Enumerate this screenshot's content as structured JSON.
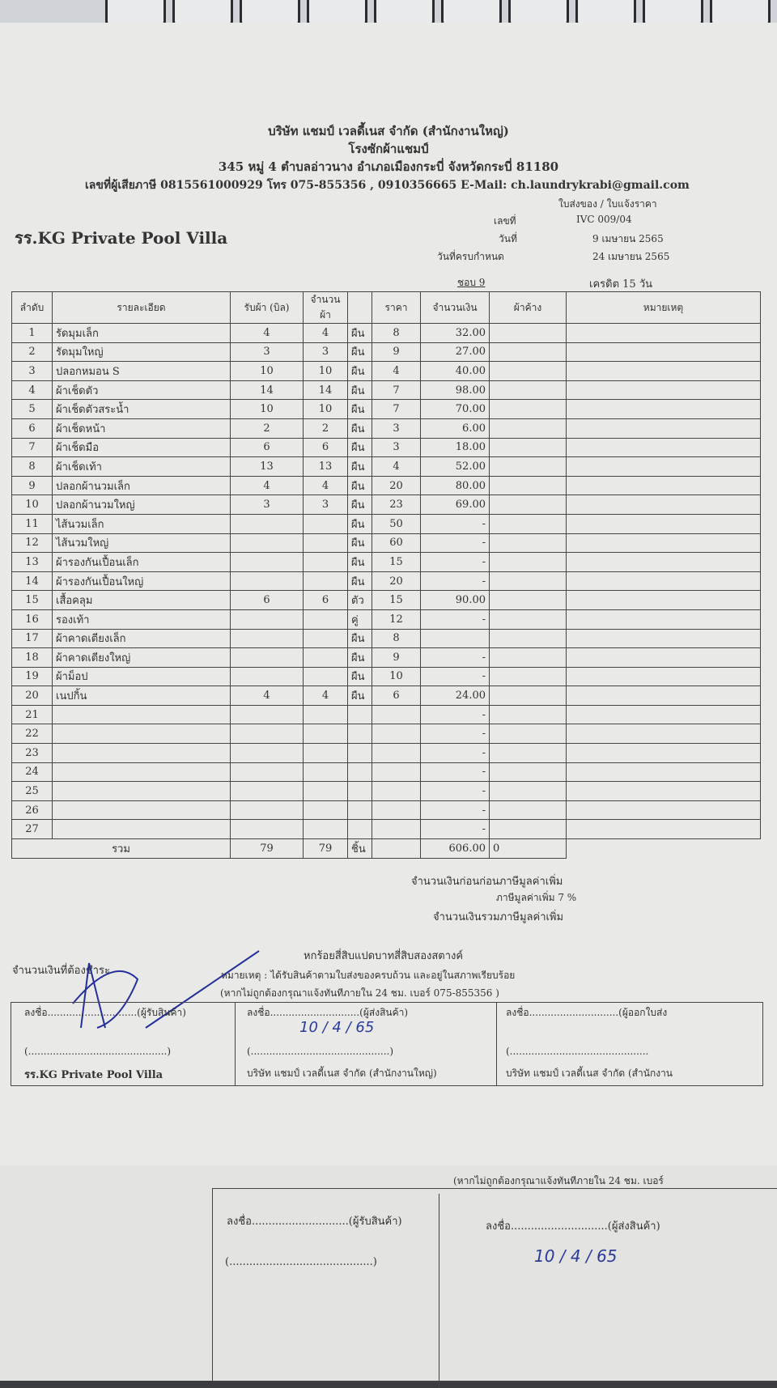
{
  "company": {
    "name": "บริษัท แชมป์ เวลดี้เนส จำกัด (สำนักงานใหญ่)",
    "plant": "โรงซักผ้าแชมป์",
    "address": "345 หมู่ 4 ตำบลอ่าวนาง อำเภอเมืองกระบี่ จังหวัดกระบี่ 81180",
    "contact": "เลขที่ผู้เสียภาษี 0815561000929 โทร 075-855356 , 0910356665 E-Mail: ch.laundrykrabi@gmail.com"
  },
  "doc_type": "ใบส่งของ / ใบแจ้งราคา",
  "customer": "รร.KG Private Pool Villa",
  "meta": {
    "no_label": "เลขที่",
    "no": "IVC 009/04",
    "date_label": "วันที่",
    "date": "9 เมษายน 2565",
    "due_label": "วันที่ครบกำหนด",
    "due": "24 เมษายน 2565",
    "credit": "เครดิต 15 วัน",
    "batch": "ชอบ 9"
  },
  "columns": [
    "ลำดับ",
    "รายละเอียด",
    "รับผ้า (บิล)",
    "จำนวนผ้า",
    "",
    "ราคา",
    "จำนวนเงิน",
    "ผ้าค้าง",
    "หมายเหตุ"
  ],
  "rows": [
    [
      "1",
      "รัดมุมเล็ก",
      "4",
      "4",
      "ผืน",
      "8",
      "32.00"
    ],
    [
      "2",
      "รัดมุมใหญ่",
      "3",
      "3",
      "ผืน",
      "9",
      "27.00"
    ],
    [
      "3",
      "ปลอกหมอน S",
      "10",
      "10",
      "ผืน",
      "4",
      "40.00"
    ],
    [
      "4",
      "ผ้าเช็ดตัว",
      "14",
      "14",
      "ผืน",
      "7",
      "98.00"
    ],
    [
      "5",
      "ผ้าเช็ดตัวสระน้ำ",
      "10",
      "10",
      "ผืน",
      "7",
      "70.00"
    ],
    [
      "6",
      "ผ้าเช็ดหน้า",
      "2",
      "2",
      "ผืน",
      "3",
      "6.00"
    ],
    [
      "7",
      "ผ้าเช็ดมือ",
      "6",
      "6",
      "ผืน",
      "3",
      "18.00"
    ],
    [
      "8",
      "ผ้าเช็ดเท้า",
      "13",
      "13",
      "ผืน",
      "4",
      "52.00"
    ],
    [
      "9",
      "ปลอกผ้านวมเล็ก",
      "4",
      "4",
      "ผืน",
      "20",
      "80.00"
    ],
    [
      "10",
      "ปลอกผ้านวมใหญ่",
      "3",
      "3",
      "ผืน",
      "23",
      "69.00"
    ],
    [
      "11",
      "ไส้นวมเล็ก",
      "",
      "",
      "ผืน",
      "50",
      "-"
    ],
    [
      "12",
      "ไส้นวมใหญ่",
      "",
      "",
      "ผืน",
      "60",
      "-"
    ],
    [
      "13",
      "ผ้ารองกันเปื้อนเล็ก",
      "",
      "",
      "ผืน",
      "15",
      "-"
    ],
    [
      "14",
      "ผ้ารองกันเปื้อนใหญ่",
      "",
      "",
      "ผืน",
      "20",
      "-"
    ],
    [
      "15",
      "เสื้อคลุม",
      "6",
      "6",
      "ตัว",
      "15",
      "90.00"
    ],
    [
      "16",
      "รองเท้า",
      "",
      "",
      "คู่",
      "12",
      "-"
    ],
    [
      "17",
      "ผ้าคาดเตียงเล็ก",
      "",
      "",
      "ผืน",
      "8",
      ""
    ],
    [
      "18",
      "ผ้าคาดเตียงใหญ่",
      "",
      "",
      "ผืน",
      "9",
      "-"
    ],
    [
      "19",
      "ผ้าม็อป",
      "",
      "",
      "ผืน",
      "10",
      "-"
    ],
    [
      "20",
      "เนปกิ้น",
      "4",
      "4",
      "ผืน",
      "6",
      "24.00"
    ],
    [
      "21",
      "",
      "",
      "",
      "",
      "",
      "-"
    ],
    [
      "22",
      "",
      "",
      "",
      "",
      "",
      "-"
    ],
    [
      "23",
      "",
      "",
      "",
      "",
      "",
      "-"
    ],
    [
      "24",
      "",
      "",
      "",
      "",
      "",
      "-"
    ],
    [
      "25",
      "",
      "",
      "",
      "",
      "",
      "-"
    ],
    [
      "26",
      "",
      "",
      "",
      "",
      "",
      "-"
    ],
    [
      "27",
      "",
      "",
      "",
      "",
      "",
      "-"
    ]
  ],
  "total": {
    "label": "รวม",
    "bill": "79",
    "qty": "79",
    "unit": "ชิ้น",
    "amount": "606.00",
    "pending": "0"
  },
  "summary": {
    "before_vat": "จำนวนเงินก่อนก่อนภาษีมูลค่าเพิ่ม",
    "vat": "ภาษีมูลค่าเพิ่ม 7 %",
    "with_vat": "จำนวนเงินรวมภาษีมูลค่าเพิ่ม",
    "due_label": "จำนวนเงินที่ต้องชำระ",
    "amount_words": "หกร้อยสี่สิบแปดบาทสี่สิบสองสตางค์"
  },
  "note": "หมายเหตุ : ได้รับสินค้าตามใบส่งของครบถ้วน และอยู่ในสภาพเรียบร้อย",
  "note2": "(หากไม่ถูกต้องกรุณาแจ้งทันทีภายใน 24 ชม. เบอร์ 075-855356 )",
  "signatures": [
    {
      "line": "ลงชื่อ.............................(ผู้รับสินค้า)",
      "paren": "(.............................................)",
      "org": "รร.KG Private Pool Villa"
    },
    {
      "line": "ลงชื่อ.............................(ผู้ส่งสินค้า)",
      "paren": "(.............................................)",
      "org": "บริษัท แชมป์ เวลดี้เนส จำกัด (สำนักงานใหญ่)",
      "handwritten_date": "10 / 4 / 65"
    },
    {
      "line": "ลงชื่อ.............................(ผู้ออกใบส่ง",
      "paren": "(.............................................",
      "org": "บริษัท แชมป์ เวลดี้เนส จำกัด (สำนักงาน"
    }
  ],
  "copy2": {
    "note2": "(หากไม่ถูกต้องกรุณาแจ้งทันทีภายใน 24 ชม. เบอร์",
    "sig1": "ลงชื่อ.............................(ผู้รับสินค้า)",
    "sig2": "ลงชื่อ.............................(ผู้ส่งสินค้า)",
    "paren": "(...........................................)",
    "date": "10 / 4 / 65"
  }
}
